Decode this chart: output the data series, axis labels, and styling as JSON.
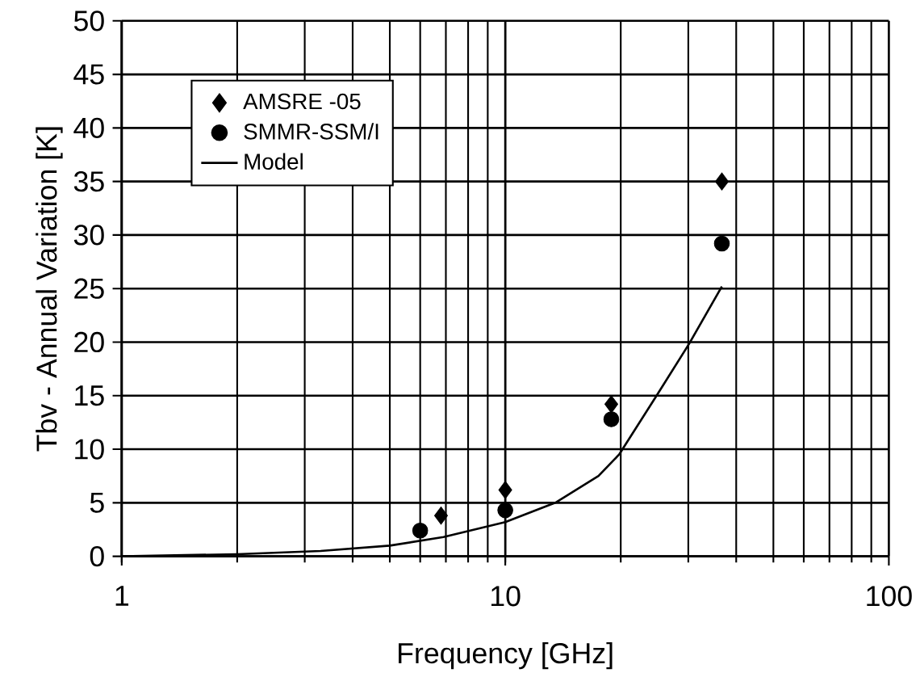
{
  "chart_data": {
    "type": "scatter",
    "xlabel": "Frequency [GHz]",
    "ylabel": "Tbv - Annual Variation [K]",
    "log": "x",
    "xlim": [
      1,
      100
    ],
    "xticks": [
      1,
      10,
      100
    ],
    "ylim": [
      0,
      50
    ],
    "yticks": [
      0,
      5,
      10,
      15,
      20,
      25,
      30,
      35,
      40,
      45,
      50
    ],
    "grid": true,
    "legend": "top left",
    "series": [
      {
        "name": "AMSRE -05",
        "marker": "diamond",
        "color": "#000000",
        "x": [
          6.8,
          10,
          18.9,
          36.7
        ],
        "values": [
          3.8,
          6.2,
          14.2,
          35
        ]
      },
      {
        "name": "SMMR-SSM/I",
        "marker": "circle",
        "color": "#000000",
        "x": [
          6.0,
          10,
          18.9,
          36.7
        ],
        "values": [
          2.4,
          4.3,
          12.8,
          29.2
        ]
      },
      {
        "name": "Model",
        "type": "line",
        "marker": "none",
        "line_style": "solid",
        "color": "#000000",
        "x": [
          1,
          2,
          3.3,
          5,
          6.9,
          10,
          13.5,
          17.5,
          19.8,
          24.8,
          30.1,
          36.7
        ],
        "values": [
          0,
          0.2,
          0.5,
          1.0,
          1.8,
          3.2,
          5.0,
          7.5,
          9.5,
          15.0,
          19.8,
          25.2
        ]
      }
    ]
  }
}
